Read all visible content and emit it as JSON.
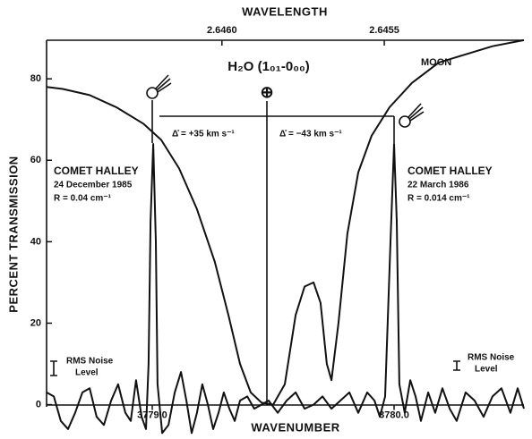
{
  "chart_data": {
    "type": "line",
    "title": "WAVELENGTH",
    "x_label": "WAVENUMBER",
    "y_label": "PERCENT TRANSMISSION",
    "xlim": [
      3778.563,
      3780.537
    ],
    "xticks": [
      {
        "value": 3779,
        "label": "3779.0"
      },
      {
        "value": 3780,
        "label": "3780.0"
      }
    ],
    "x2lim": [
      2.64654,
      2.64507
    ],
    "x2ticks": [
      {
        "value": 2.646,
        "label": "2.6460"
      },
      {
        "value": 2.6455,
        "label": "2.6455"
      }
    ],
    "ylim": [
      -8,
      90
    ],
    "yticks": [
      0,
      20,
      40,
      60,
      80
    ],
    "series": [
      {
        "color": "#111111",
        "x": [
          3778.563,
          3778.63,
          3778.741,
          3778.852,
          3778.963,
          3779.037,
          3779.111,
          3779.185,
          3779.259,
          3779.315,
          3779.363,
          3779.407,
          3779.452,
          3779.5,
          3779.548,
          3779.593,
          3779.63,
          3779.667,
          3779.696,
          3779.722,
          3779.741,
          3779.77,
          3779.807,
          3779.852,
          3779.907,
          3779.981,
          3780.074,
          3780.185,
          3780.296,
          3780.407,
          3780.537
        ],
        "values": [
          78,
          77.5,
          76,
          73,
          69,
          65,
          58,
          48,
          35,
          22,
          10,
          3,
          0.5,
          0,
          5,
          22,
          29,
          30,
          25,
          10,
          6,
          20,
          42,
          57,
          66,
          73,
          79,
          84,
          86,
          88,
          89.5
        ]
      },
      {
        "color": "#111111",
        "x": [
          3778.563,
          3778.593,
          3778.622,
          3778.652,
          3778.681,
          3778.711,
          3778.741,
          3778.77,
          3778.8,
          3778.83,
          3778.859,
          3778.889,
          3778.911,
          3778.933,
          3778.956,
          3778.974,
          3778.985,
          3778.993,
          3779.004,
          3779.015,
          3779.022,
          3779.041,
          3779.067,
          3779.093,
          3779.119,
          3779.141,
          3779.163,
          3779.185,
          3779.207,
          3779.23,
          3779.252,
          3779.274,
          3779.296,
          3779.319,
          3779.341,
          3779.363,
          3779.393,
          3779.422,
          3779.452,
          3779.481,
          3779.519,
          3779.556,
          3779.593,
          3779.63,
          3779.667,
          3779.704,
          3779.741,
          3779.778,
          3779.815,
          3779.852,
          3779.889,
          3779.919,
          3779.941,
          3779.963,
          3779.985,
          3780.0,
          3780.011,
          3780.022,
          3780.044,
          3780.067,
          3780.089,
          3780.111,
          3780.141,
          3780.17,
          3780.2,
          3780.23,
          3780.259,
          3780.296,
          3780.333,
          3780.37,
          3780.407,
          3780.444,
          3780.481,
          3780.511,
          3780.537
        ],
        "values": [
          3,
          2,
          -4,
          -6,
          -2,
          3,
          4,
          -3,
          -5,
          1,
          5,
          -2,
          -4,
          6,
          -3,
          -6,
          10,
          45,
          64,
          40,
          5,
          -7,
          -5,
          3,
          8,
          1,
          -7,
          -2,
          5,
          0,
          -6,
          -2,
          3,
          -1,
          -4,
          1,
          2,
          -1,
          0,
          1,
          -2,
          1,
          3,
          -1,
          0,
          2,
          -1,
          1,
          3,
          -2,
          3,
          1,
          -3,
          2,
          40,
          64,
          45,
          5,
          -2,
          6,
          2,
          -4,
          3,
          -2,
          4,
          -1,
          -4,
          3,
          1,
          -3,
          2,
          4,
          -2,
          4,
          -1
        ]
      }
    ],
    "annotations": [
      "H₂O (1₀₁-0₀₀)",
      "MOON",
      "COMET HALLEY",
      "24 December 1985",
      "R = 0.04 cm⁻¹",
      "COMET HALLEY",
      "22 March 1986",
      "R = 0.014 cm⁻¹",
      "Δ̊ = +35 km s⁻¹",
      "Δ̊ = −43 km s⁻¹",
      "RMS Noise",
      "Level",
      "RMS Noise",
      "Level",
      "⊕"
    ]
  }
}
